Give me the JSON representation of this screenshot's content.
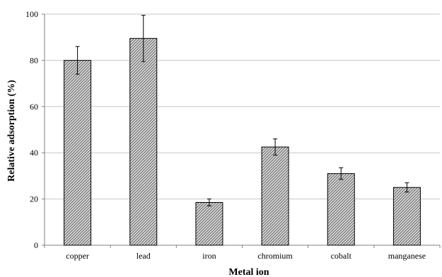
{
  "chart_data": {
    "type": "bar",
    "categories": [
      "copper",
      "lead",
      "iron",
      "chromium",
      "cobalt",
      "manganese"
    ],
    "values": [
      80,
      89.5,
      18.5,
      42.5,
      31,
      25
    ],
    "errors": [
      6,
      10,
      1.5,
      3.5,
      2.5,
      2
    ],
    "title": "",
    "xlabel": "Metal ion",
    "ylabel": "Relative adsorption  (%)",
    "ylim": [
      0,
      100
    ],
    "yticks": [
      0,
      20,
      40,
      60,
      80,
      100
    ],
    "grid": "horizontal",
    "legend": "none",
    "colors": {
      "bar_fill_base": "#d9d9d9",
      "bar_pattern": "#555555",
      "bar_stroke": "#000000",
      "gridline": "#c8c8c8",
      "axis": "#808080"
    }
  }
}
